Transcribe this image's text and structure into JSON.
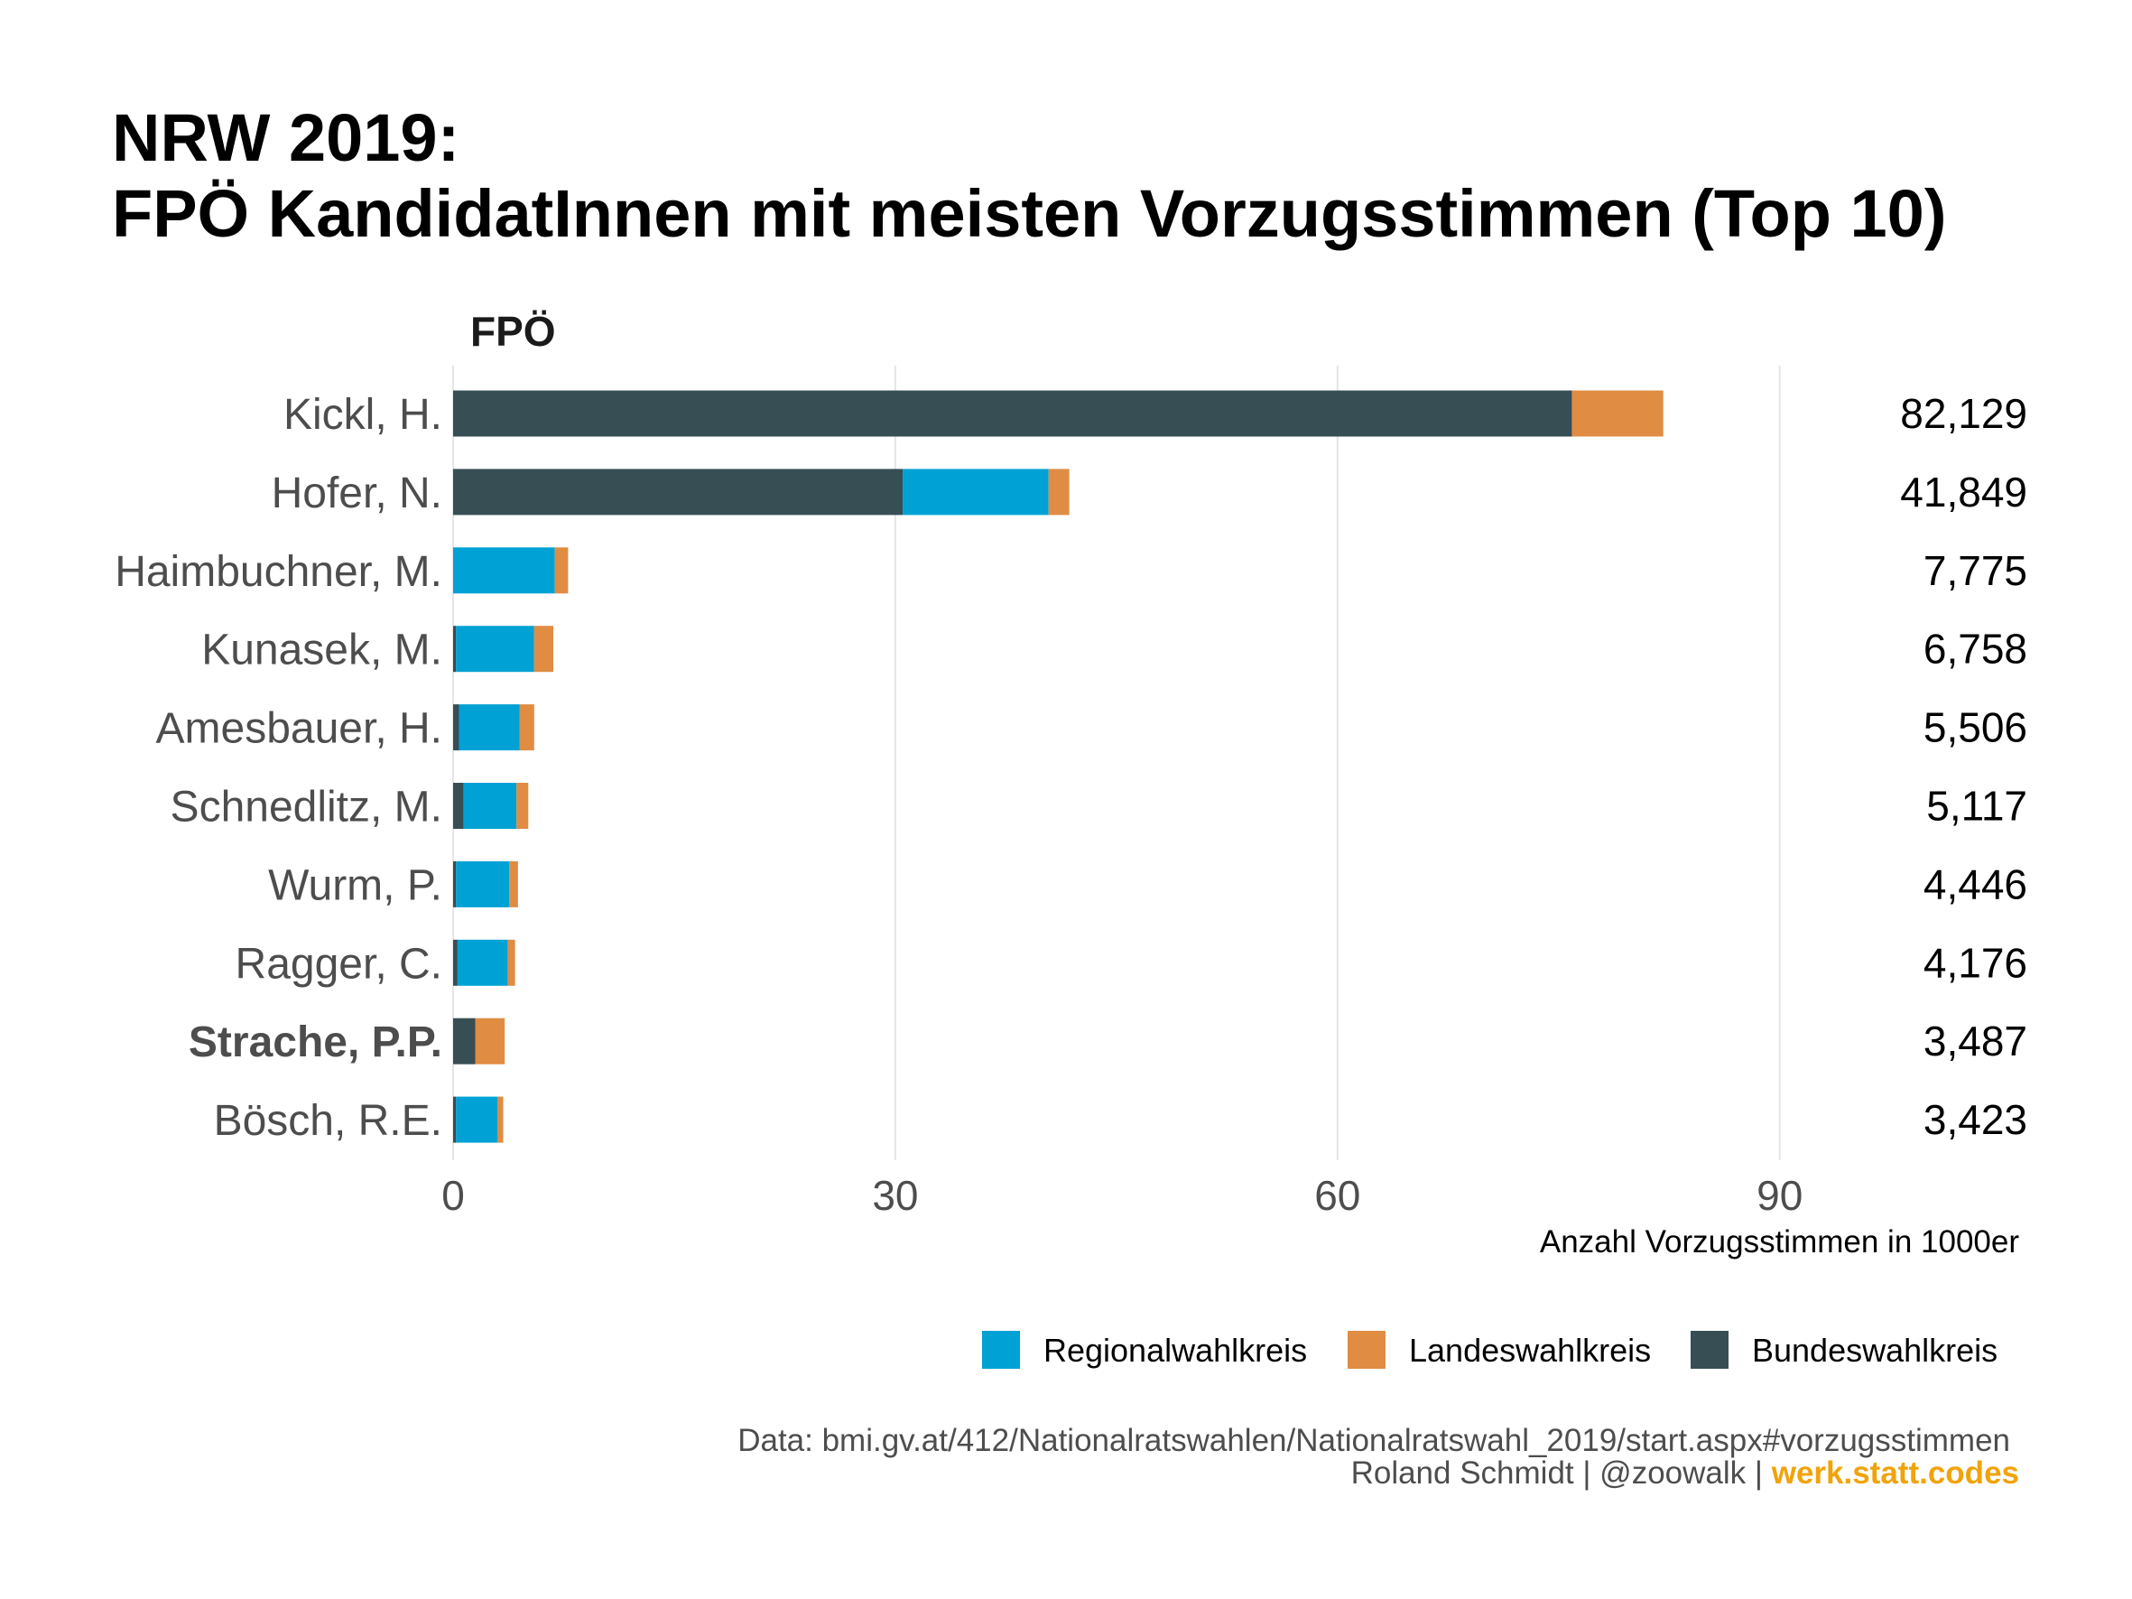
{
  "title_line1": "NRW 2019:",
  "title_line2": "FPÖ KandidatInnen mit meisten Vorzugsstimmen (Top 10)",
  "facet_label": "FPÖ",
  "caption": {
    "line1": "Data: bmi.gv.at/412/Nationalratswahlen/Nationalratswahl_2019/start.aspx#vorzugsstimmen",
    "line2_prefix": "Roland Schmidt | @zoowalk | ",
    "line2_link": "werk.statt.codes"
  },
  "colors": {
    "Regionalwahlkreis": "#00a1d5",
    "Landeswahlkreis": "#e08c43",
    "Bundeswahlkreis": "#374e55",
    "gridline": "#e5e5e5",
    "caption_link": "#f0a30a"
  },
  "chart_data": {
    "type": "bar",
    "orientation": "horizontal",
    "stacked": true,
    "facet": "FPÖ",
    "xlabel": "Anzahl Vorzugsstimmen in 1000er",
    "ylabel": "",
    "xlim": [
      0,
      100
    ],
    "xticks": [
      0,
      30,
      60,
      90
    ],
    "grid": "vertical major",
    "legend_position": "bottom-right",
    "categories": [
      "Kickl, H.",
      "Hofer, N.",
      "Haimbuchner, M.",
      "Kunasek, M.",
      "Amesbauer, H.",
      "Schnedlitz, M.",
      "Wurm, P.",
      "Ragger, C.",
      "Strache, P.P.",
      "Bösch, R.E."
    ],
    "highlighted_category": "Strache, P.P.",
    "totals_label": [
      "82,129",
      "41,849",
      "7,775",
      "6,758",
      "5,506",
      "5,117",
      "4,446",
      "4,176",
      "3,487",
      "3,423"
    ],
    "stack_order": [
      "Bundeswahlkreis",
      "Regionalwahlkreis",
      "Landeswahlkreis"
    ],
    "series": [
      {
        "name": "Regionalwahlkreis",
        "values": [
          0,
          9.9,
          6.9,
          5.3,
          4.1,
          3.6,
          3.6,
          3.4,
          0,
          2.8
        ]
      },
      {
        "name": "Landeswahlkreis",
        "values": [
          6.2,
          1.4,
          0.9,
          1.3,
          1.0,
          0.8,
          0.6,
          0.5,
          2.0,
          0.4
        ]
      },
      {
        "name": "Bundeswahlkreis",
        "values": [
          75.9,
          30.5,
          0,
          0.2,
          0.4,
          0.7,
          0.2,
          0.3,
          1.5,
          0.2
        ]
      }
    ]
  }
}
